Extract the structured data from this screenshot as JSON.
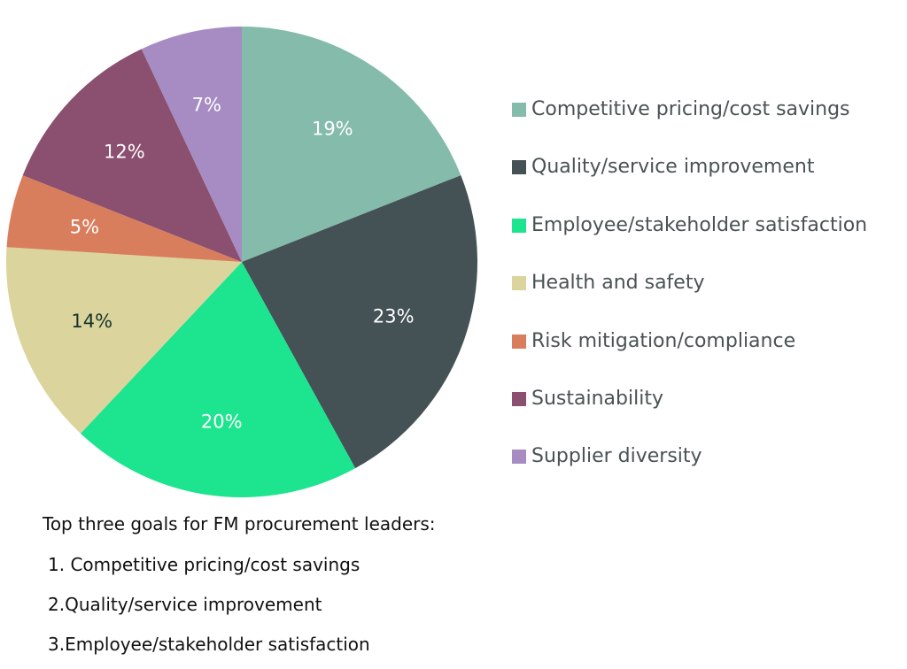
{
  "chart_data": {
    "type": "pie",
    "title": "",
    "start_angle_deg": 0,
    "direction": "clockwise",
    "slices": [
      {
        "label": "Competitive pricing/cost savings",
        "value": 19,
        "display": "19%",
        "color": "#85bbab",
        "label_color": "#ffffff"
      },
      {
        "label": "Quality/service improvement",
        "value": 23,
        "display": "23%",
        "color": "#445155",
        "label_color": "#ffffff"
      },
      {
        "label": "Employee/stakeholder satisfaction",
        "value": 20,
        "display": "20%",
        "color": "#1de48f",
        "label_color": "#ffffff"
      },
      {
        "label": "Health and safety",
        "value": 14,
        "display": "14%",
        "color": "#dbd59d",
        "label_color": "#16332c"
      },
      {
        "label": "Risk mitigation/compliance",
        "value": 5,
        "display": "5%",
        "color": "#d87e5d",
        "label_color": "#ffffff"
      },
      {
        "label": "Sustainability",
        "value": 12,
        "display": "12%",
        "color": "#8b4f6f",
        "label_color": "#ffffff"
      },
      {
        "label": "Supplier diversity",
        "value": 7,
        "display": "7%",
        "color": "#a68cc2",
        "label_color": "#ffffff"
      }
    ],
    "legend_position": "right"
  },
  "notes": {
    "title": "Top three goals for FM procurement leaders:",
    "items": [
      "1. Competitive pricing/cost savings",
      "2.Quality/service improvement",
      "3.Employee/stakeholder satisfaction"
    ]
  }
}
